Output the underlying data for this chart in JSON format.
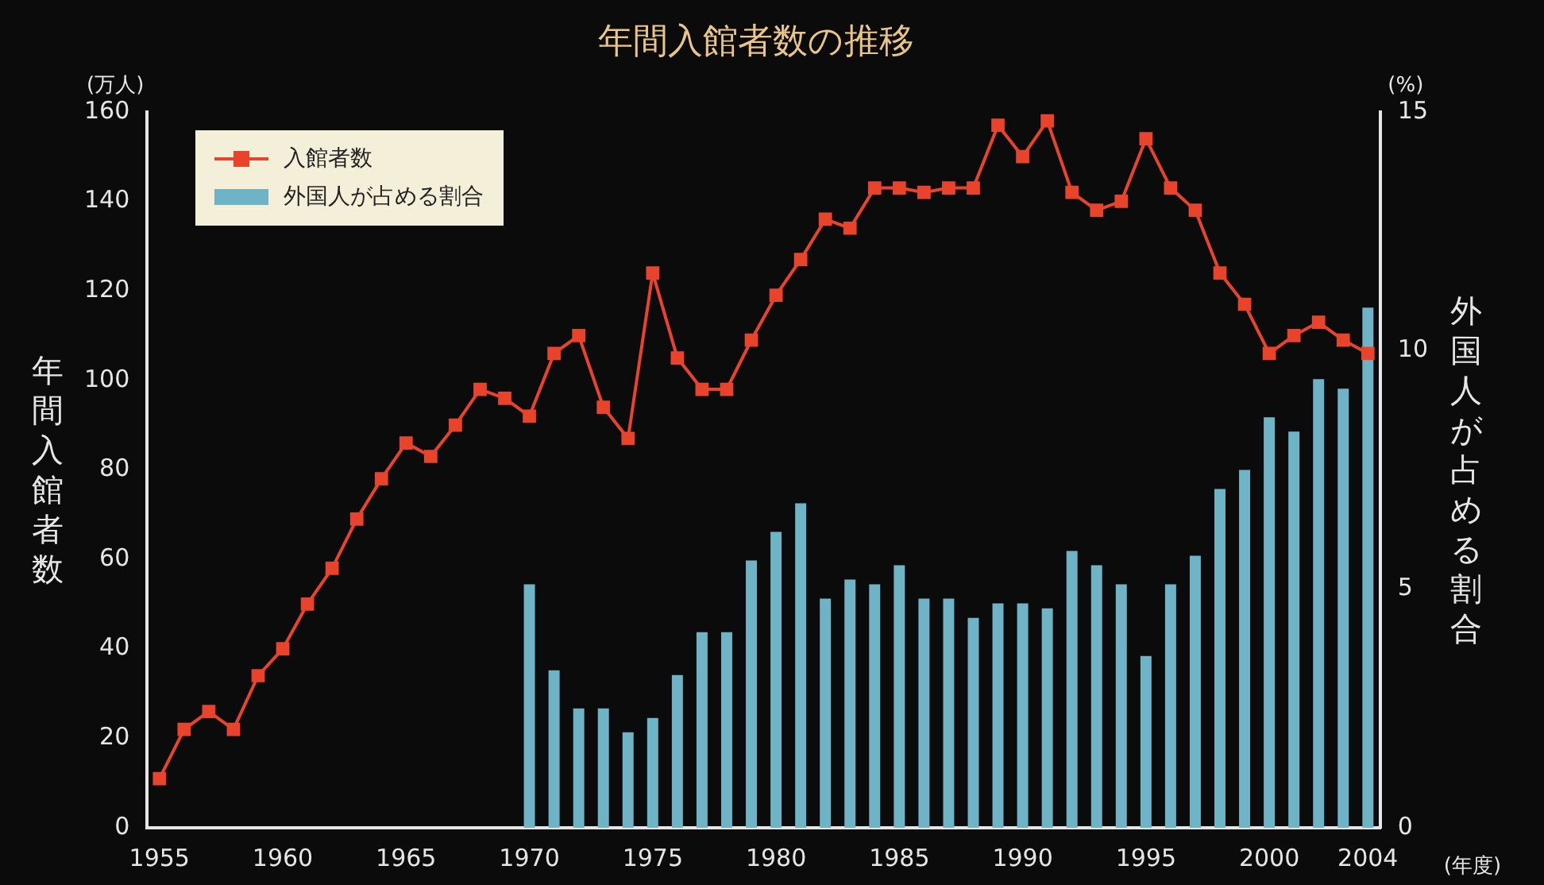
{
  "chart_data": {
    "type": "bar",
    "title": "年間入館者数の推移",
    "ylabel": "年間入館者数",
    "y2label": "外国人が占める割合",
    "annotations": [
      "(万人)",
      "(%)",
      "(年度)"
    ],
    "categories": [
      "1955",
      null,
      null,
      null,
      null,
      "1960",
      null,
      null,
      null,
      null,
      "1965",
      null,
      null,
      null,
      null,
      "1970",
      null,
      null,
      null,
      null,
      "1975",
      null,
      null,
      null,
      null,
      "1980",
      null,
      null,
      null,
      null,
      "1985",
      null,
      null,
      null,
      null,
      "1990",
      null,
      null,
      null,
      null,
      "1995",
      null,
      null,
      null,
      null,
      "2000",
      null,
      null,
      null,
      "2004"
    ],
    "series": [
      {
        "name": "入館者数",
        "type": "line",
        "color": "#e8442c",
        "marker": "square",
        "values": [
          11,
          22,
          26,
          22,
          34,
          40,
          50,
          58,
          69,
          78,
          86,
          83,
          90,
          98,
          96,
          92,
          106,
          110,
          94,
          87,
          124,
          105,
          98,
          98,
          109,
          119,
          127,
          136,
          134,
          143,
          143,
          142,
          143,
          143,
          157,
          150,
          158,
          142,
          138,
          140,
          154,
          143,
          138,
          124,
          117,
          106,
          110,
          113,
          109,
          106
        ]
      },
      {
        "name": "外国人が占める割合",
        "axis": "y2",
        "color": "#6fb3c6",
        "values": [
          null,
          null,
          null,
          null,
          null,
          null,
          null,
          null,
          null,
          null,
          null,
          null,
          null,
          null,
          null,
          5.1,
          3.3,
          2.5,
          2.5,
          2.0,
          2.3,
          3.2,
          4.1,
          4.1,
          5.6,
          6.2,
          6.8,
          4.8,
          5.2,
          5.1,
          5.5,
          4.8,
          4.8,
          4.4,
          4.7,
          4.7,
          4.6,
          5.8,
          5.5,
          5.1,
          3.6,
          5.1,
          5.7,
          7.1,
          7.5,
          8.6,
          8.3,
          9.4,
          9.2,
          10.9
        ]
      }
    ],
    "ylim": [
      0,
      160
    ],
    "yticks": [
      0,
      20,
      40,
      60,
      80,
      100,
      120,
      140,
      160
    ],
    "y2lim": [
      0,
      15
    ],
    "y2ticks": [
      0,
      5,
      10,
      15
    ],
    "legend": "top left",
    "grid": false
  }
}
